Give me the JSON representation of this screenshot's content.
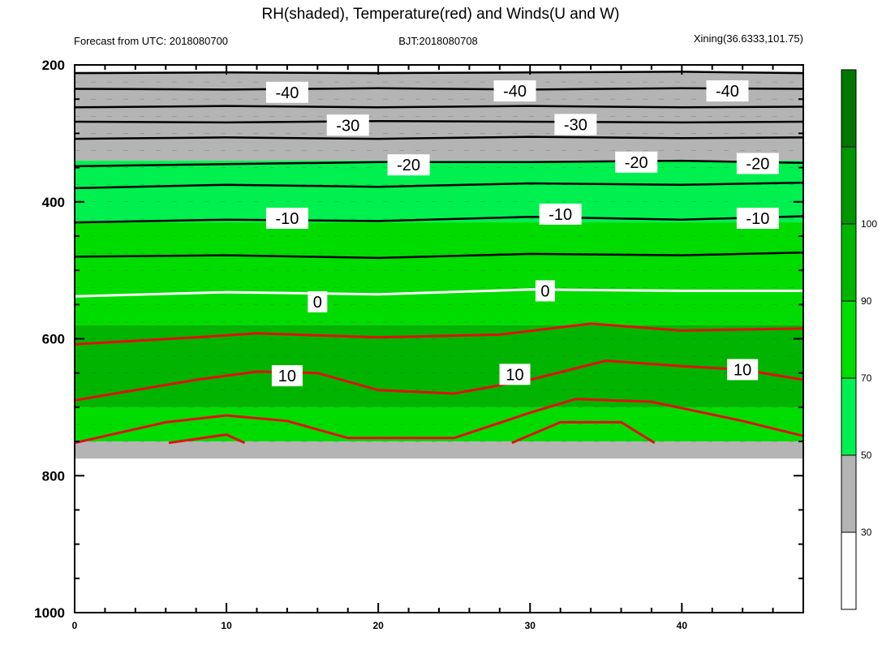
{
  "chart_data": {
    "type": "contour",
    "title": "RH(shaded), Temperature(red) and Winds(U and W)",
    "left_subtitle": "Forecast from UTC: 2018080700",
    "center_subtitle": "BJT:2018080708",
    "right_subtitle": "Xining(36.6333,101.75)",
    "x_ticks": [
      0,
      10,
      20,
      30,
      40
    ],
    "x_range": [
      0,
      48
    ],
    "y_ticks": [
      200,
      400,
      600,
      800,
      1000
    ],
    "y_range": [
      200,
      1000
    ],
    "y_axis_reversed": true,
    "colorbar": {
      "labels": [
        "30",
        "50",
        "70",
        "90",
        "100"
      ],
      "colors": [
        "#ffffff",
        "#b4b4b4",
        "#00f050",
        "#00dc00",
        "#00b400",
        "#009600",
        "#007800"
      ]
    },
    "rh_bands_by_pressure": [
      {
        "top": 210,
        "bottom": 340,
        "level": 1
      },
      {
        "top": 340,
        "bottom": 430,
        "level": 2
      },
      {
        "top": 430,
        "bottom": 580,
        "level": 3
      },
      {
        "top": 580,
        "bottom": 700,
        "level": 4
      },
      {
        "top": 700,
        "bottom": 750,
        "level": 3
      },
      {
        "top": 750,
        "bottom": 775,
        "level": 1
      }
    ],
    "black_isotherms": [
      {
        "points": [
          [
            0,
            212
          ],
          [
            10,
            211
          ],
          [
            20,
            212
          ],
          [
            30,
            211
          ],
          [
            40,
            210
          ],
          [
            48,
            212
          ]
        ]
      },
      {
        "points": [
          [
            0,
            235
          ],
          [
            10,
            236
          ],
          [
            20,
            234
          ],
          [
            30,
            236
          ],
          [
            40,
            234
          ],
          [
            48,
            235
          ]
        ]
      },
      {
        "points": [
          [
            0,
            262
          ],
          [
            10,
            260
          ],
          [
            20,
            262
          ],
          [
            30,
            260
          ],
          [
            40,
            262
          ],
          [
            48,
            261
          ]
        ]
      },
      {
        "points": [
          [
            0,
            283
          ],
          [
            10,
            284
          ],
          [
            20,
            282
          ],
          [
            30,
            283
          ],
          [
            40,
            284
          ],
          [
            48,
            283
          ]
        ]
      },
      {
        "points": [
          [
            0,
            308
          ],
          [
            10,
            306
          ],
          [
            20,
            308
          ],
          [
            30,
            305
          ],
          [
            40,
            307
          ],
          [
            48,
            306
          ]
        ]
      },
      {
        "points": [
          [
            0,
            348
          ],
          [
            10,
            345
          ],
          [
            20,
            342
          ],
          [
            30,
            342
          ],
          [
            40,
            340
          ],
          [
            48,
            343
          ]
        ]
      },
      {
        "points": [
          [
            0,
            380
          ],
          [
            10,
            375
          ],
          [
            20,
            378
          ],
          [
            30,
            373
          ],
          [
            40,
            375
          ],
          [
            48,
            372
          ]
        ]
      },
      {
        "points": [
          [
            0,
            430
          ],
          [
            10,
            426
          ],
          [
            20,
            428
          ],
          [
            30,
            422
          ],
          [
            40,
            426
          ],
          [
            48,
            421
          ]
        ]
      },
      {
        "points": [
          [
            0,
            480
          ],
          [
            10,
            478
          ],
          [
            20,
            482
          ],
          [
            30,
            476
          ],
          [
            40,
            478
          ],
          [
            48,
            474
          ]
        ]
      }
    ],
    "white_isotherm": {
      "points": [
        [
          0,
          538
        ],
        [
          10,
          532
        ],
        [
          20,
          535
        ],
        [
          30,
          528
        ],
        [
          40,
          530
        ],
        [
          48,
          530
        ]
      ]
    },
    "red_isotherms": [
      {
        "points": [
          [
            0,
            608
          ],
          [
            8,
            598
          ],
          [
            12,
            592
          ],
          [
            20,
            598
          ],
          [
            28,
            594
          ],
          [
            34,
            578
          ],
          [
            40,
            588
          ],
          [
            48,
            585
          ]
        ]
      },
      {
        "points": [
          [
            0,
            690
          ],
          [
            8,
            660
          ],
          [
            12,
            648
          ],
          [
            16,
            650
          ],
          [
            20,
            675
          ],
          [
            25,
            680
          ],
          [
            30,
            660
          ],
          [
            35,
            632
          ],
          [
            40,
            640
          ],
          [
            44,
            645
          ],
          [
            48,
            660
          ]
        ]
      },
      {
        "points": [
          [
            0,
            752
          ],
          [
            6,
            722
          ],
          [
            10,
            712
          ],
          [
            14,
            720
          ],
          [
            18,
            745
          ],
          [
            25,
            745
          ],
          [
            30,
            708
          ],
          [
            33,
            688
          ],
          [
            38,
            692
          ],
          [
            44,
            720
          ],
          [
            48,
            742
          ]
        ]
      },
      {
        "points": [
          [
            6.2,
            752
          ],
          [
            10,
            740
          ],
          [
            11.2,
            752
          ]
        ]
      },
      {
        "points": [
          [
            28.8,
            752
          ],
          [
            32,
            722
          ],
          [
            36,
            722
          ],
          [
            38.2,
            752
          ]
        ]
      }
    ],
    "contour_labels": [
      {
        "text": "-40",
        "x": 14,
        "y": 240
      },
      {
        "text": "-40",
        "x": 29,
        "y": 238
      },
      {
        "text": "-40",
        "x": 43,
        "y": 238
      },
      {
        "text": "-30",
        "x": 18,
        "y": 288
      },
      {
        "text": "-30",
        "x": 33,
        "y": 287
      },
      {
        "text": "-20",
        "x": 22,
        "y": 346
      },
      {
        "text": "-20",
        "x": 37,
        "y": 342
      },
      {
        "text": "-20",
        "x": 45,
        "y": 344
      },
      {
        "text": "-10",
        "x": 14,
        "y": 424
      },
      {
        "text": "-10",
        "x": 32,
        "y": 418
      },
      {
        "text": "-10",
        "x": 45,
        "y": 424
      },
      {
        "text": "0",
        "x": 16,
        "y": 546
      },
      {
        "text": "0",
        "x": 31,
        "y": 530
      },
      {
        "text": "10",
        "x": 14,
        "y": 654
      },
      {
        "text": "10",
        "x": 29,
        "y": 652
      },
      {
        "text": "10",
        "x": 44,
        "y": 645
      }
    ]
  }
}
